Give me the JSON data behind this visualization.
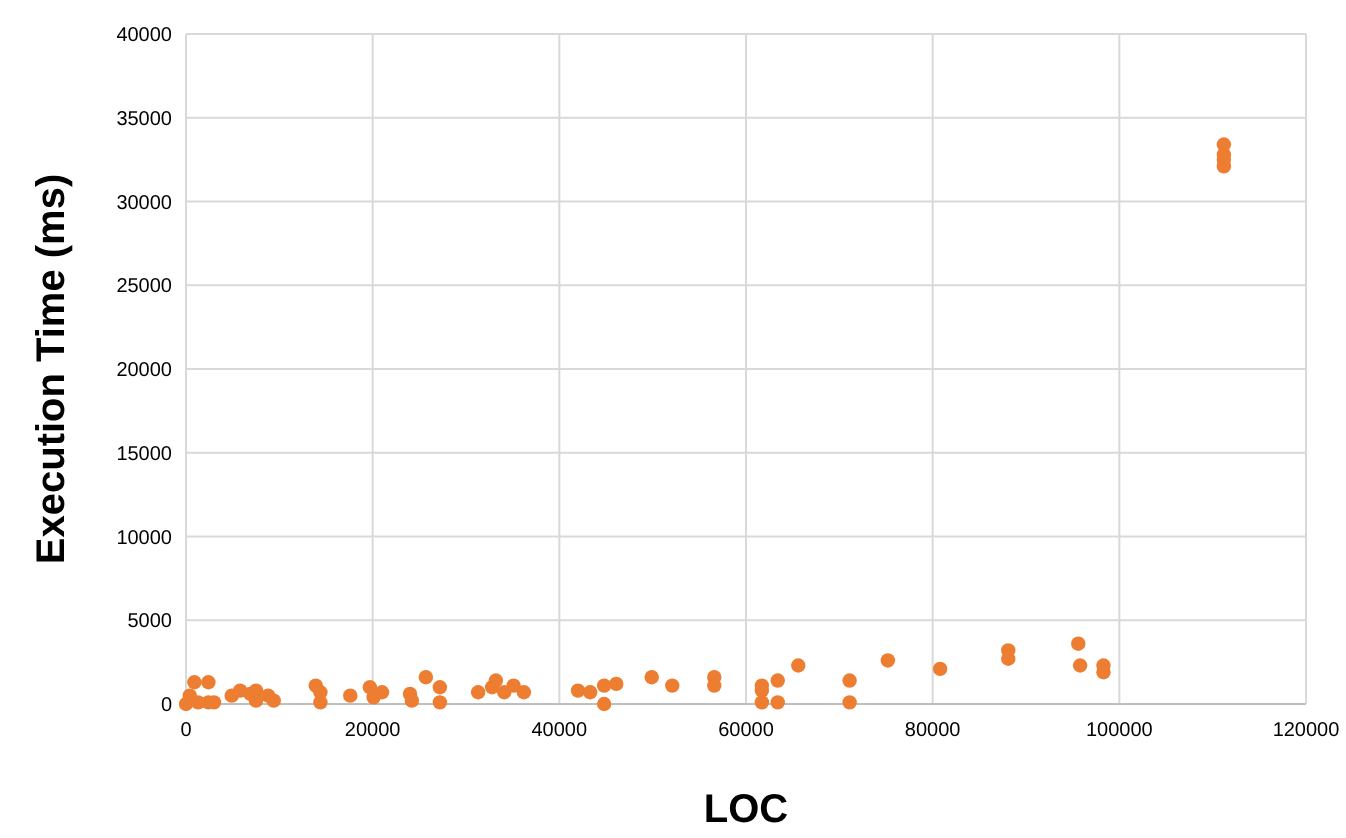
{
  "chart_data": {
    "type": "scatter",
    "xlabel": "LOC",
    "ylabel": "Execution Time (ms)",
    "xlim": [
      0,
      120000
    ],
    "xticks": [
      0,
      20000,
      40000,
      60000,
      80000,
      100000,
      120000
    ],
    "ylim": [
      0,
      40000
    ],
    "yticks": [
      0,
      5000,
      10000,
      15000,
      20000,
      25000,
      30000,
      35000,
      40000
    ],
    "grid": true,
    "marker": "circle",
    "series": [
      {
        "color": "#ed7d31",
        "x": [
          0,
          400,
          900,
          1300,
          2400,
          2400,
          3000,
          4900,
          5800,
          6900,
          7500,
          7500,
          8800,
          9400,
          13900,
          14400,
          14400,
          17600,
          19700,
          20100,
          21000,
          24000,
          24200,
          25700,
          27200,
          27200,
          31300,
          32800,
          33200,
          34100,
          35100,
          36200,
          42000,
          43300,
          44800,
          44800,
          46100,
          49900,
          52100,
          56600,
          56600,
          61700,
          61700,
          61700,
          63400,
          63400,
          65600,
          71100,
          71100,
          75200,
          80800,
          88100,
          88100,
          95600,
          95800,
          98300,
          98300,
          111200,
          111200,
          111200,
          111200
        ],
        "values": [
          0,
          500,
          1300,
          100,
          1300,
          100,
          100,
          500,
          800,
          600,
          800,
          200,
          500,
          200,
          1100,
          700,
          100,
          500,
          1000,
          400,
          700,
          600,
          200,
          1600,
          1000,
          100,
          700,
          1000,
          1400,
          700,
          1100,
          700,
          800,
          700,
          1100,
          0,
          1200,
          1600,
          1100,
          1600,
          1100,
          1100,
          800,
          100,
          1400,
          100,
          2300,
          1400,
          100,
          2600,
          2100,
          3200,
          2700,
          3600,
          2300,
          2300,
          1900,
          33400,
          32800,
          32500,
          32100
        ]
      }
    ]
  }
}
